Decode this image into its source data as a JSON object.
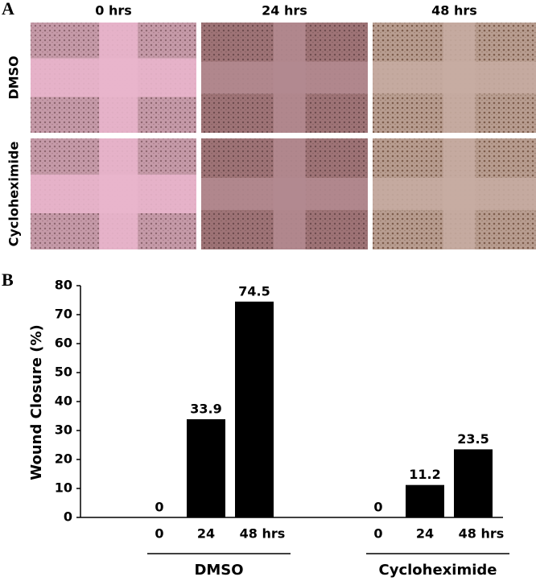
{
  "panel_a": {
    "label": "A",
    "columns": [
      "0 hrs",
      "24 hrs",
      "48 hrs"
    ],
    "rows": [
      "DMSO",
      "Cycloheximide"
    ]
  },
  "chart_data": {
    "type": "bar",
    "panel_label": "B",
    "y_label": "Wound Closure (%)",
    "categories": [
      "0",
      "24",
      "48 hrs"
    ],
    "series": [
      {
        "name": "DMSO",
        "color": "#000000",
        "values": [
          0,
          33.9,
          74.5
        ]
      },
      {
        "name": "Cycloheximide",
        "color": "#000000",
        "values": [
          0,
          11.2,
          23.5
        ]
      }
    ],
    "ylim": [
      0,
      80
    ],
    "yticks": [
      0,
      10,
      20,
      30,
      40,
      50,
      60,
      70,
      80
    ]
  }
}
